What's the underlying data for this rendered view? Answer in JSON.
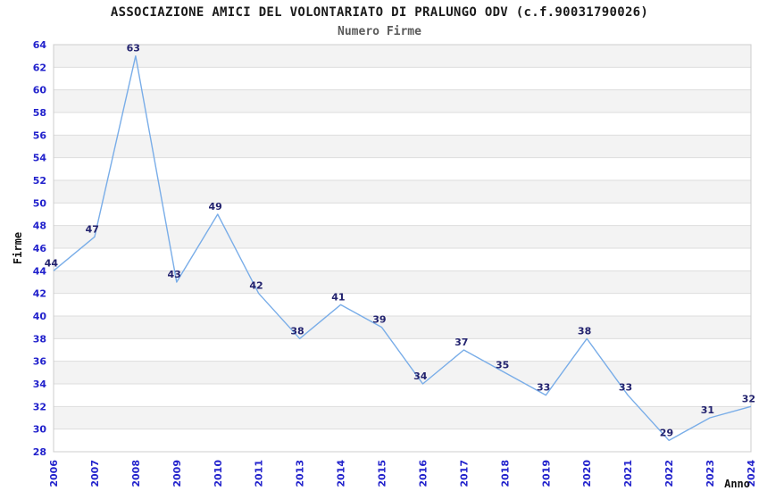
{
  "header": {
    "title": "ASSOCIAZIONE AMICI DEL VOLONTARIATO DI PRALUNGO ODV (c.f.90031790026)",
    "subtitle": "Numero Firme"
  },
  "colors": {
    "line": "#79ADE8",
    "tick_label": "#2222CC",
    "data_label": "#22226E",
    "band": "#F3F3F3",
    "grid": "#DDDDDD",
    "border": "#CCCCCC",
    "axis_title": "#111111",
    "background": "#FFFFFF"
  },
  "chart_data": {
    "type": "line",
    "title": "ASSOCIAZIONE AMICI DEL VOLONTARIATO DI PRALUNGO ODV (c.f.90031790026)",
    "subtitle": "Numero Firme",
    "xlabel": "Anno",
    "ylabel": "Firme",
    "categories": [
      "2006",
      "2007",
      "2008",
      "2009",
      "2010",
      "2011",
      "2013",
      "2014",
      "2015",
      "2016",
      "2017",
      "2018",
      "2019",
      "2020",
      "2021",
      "2022",
      "2023",
      "2024"
    ],
    "values": [
      44,
      47,
      63,
      43,
      49,
      42,
      38,
      41,
      39,
      34,
      37,
      35,
      33,
      38,
      33,
      29,
      31,
      32
    ],
    "ylim": [
      28,
      64
    ],
    "ytick_step": 2,
    "grid": true,
    "alternating_bands": true,
    "legend": "none",
    "marker": "none"
  }
}
